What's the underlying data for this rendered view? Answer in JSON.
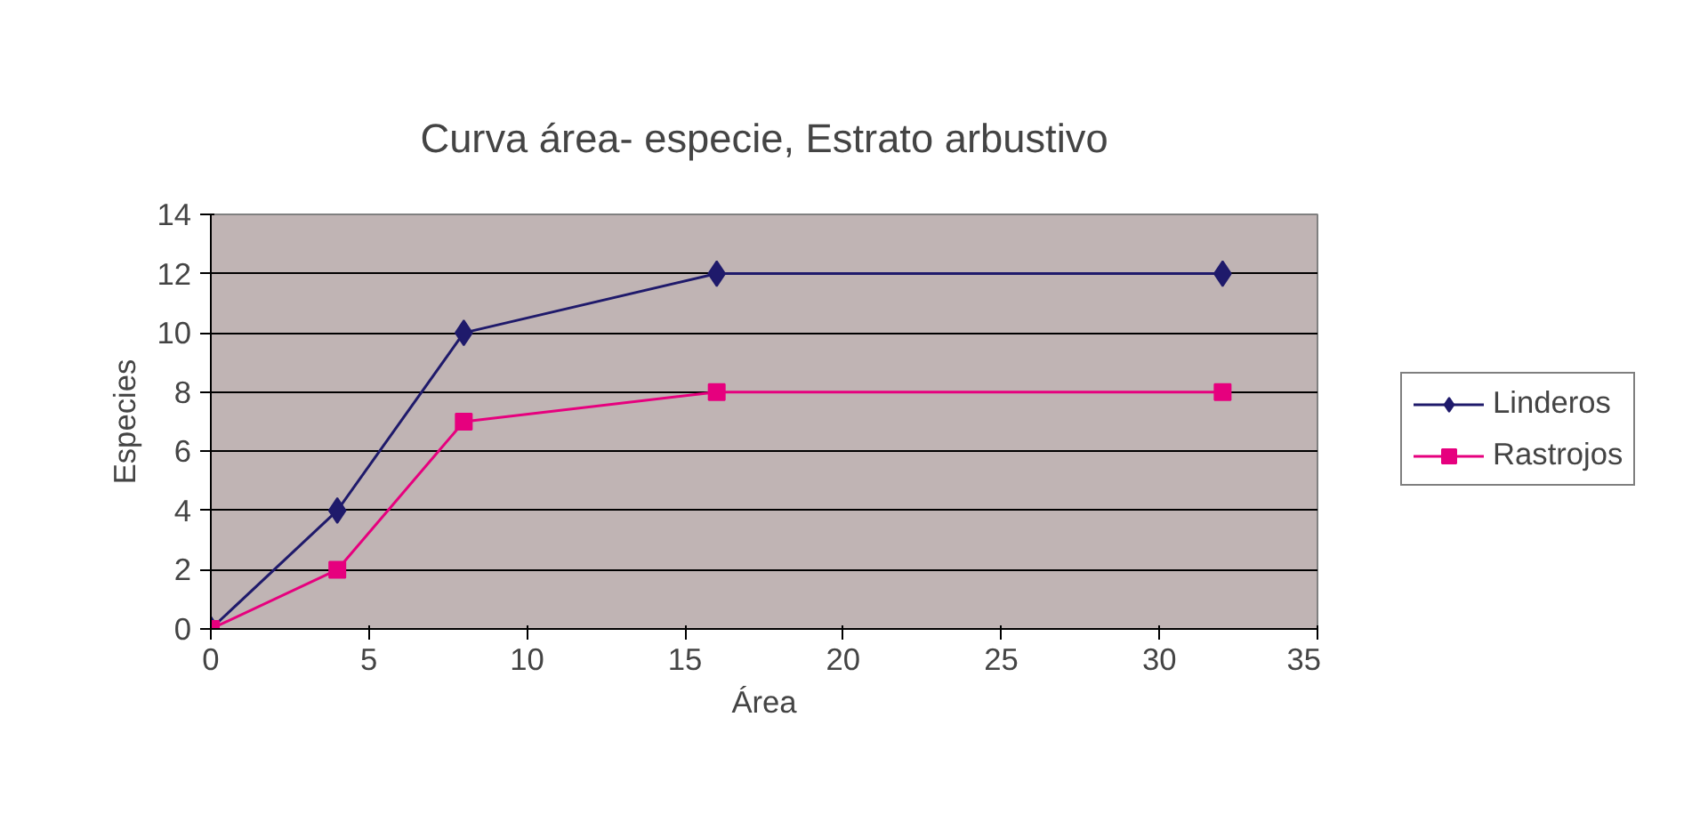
{
  "chart_data": {
    "type": "line",
    "title": "Curva área- especie, Estrato arbustivo",
    "xlabel": "Área",
    "ylabel": "Especies",
    "x": [
      0,
      4,
      8,
      16,
      32
    ],
    "series": [
      {
        "name": "Linderos",
        "color": "#1f1a6b",
        "marker": "diamond",
        "values": [
          0,
          4,
          10,
          12,
          12
        ]
      },
      {
        "name": "Rastrojos",
        "color": "#e6007e",
        "marker": "square",
        "values": [
          0,
          2,
          7,
          8,
          8
        ]
      }
    ],
    "xlim": [
      0,
      35
    ],
    "xticks": [
      0,
      5,
      10,
      15,
      20,
      25,
      30,
      35
    ],
    "ylim": [
      0,
      14
    ],
    "yticks": [
      0,
      2,
      4,
      6,
      8,
      10,
      12,
      14
    ],
    "grid": "y",
    "legend": "right"
  }
}
